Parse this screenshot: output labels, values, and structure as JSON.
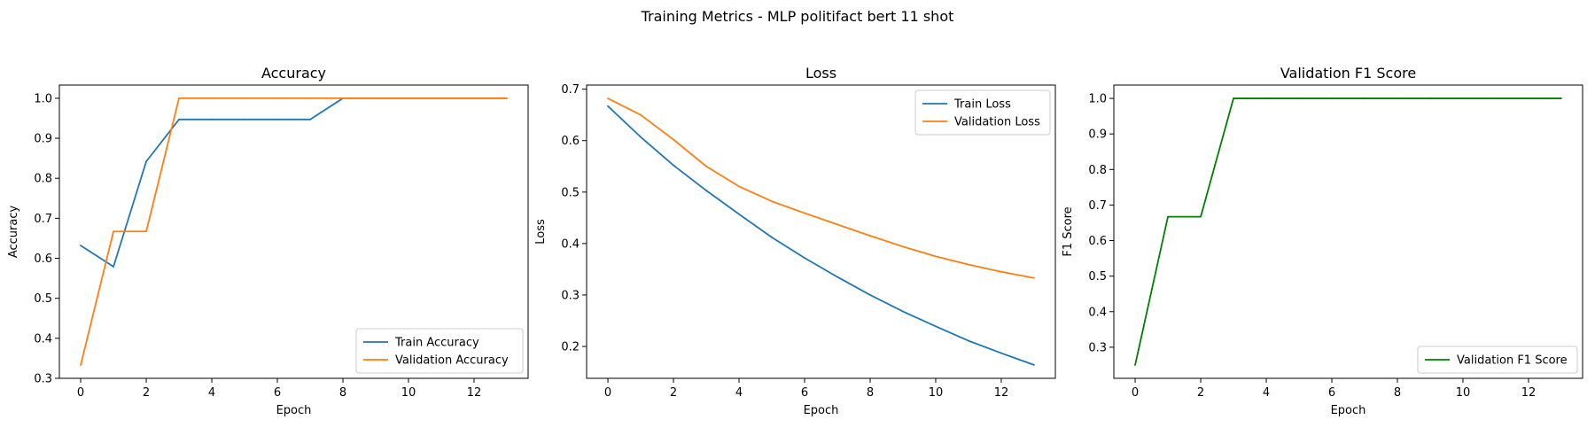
{
  "figure": {
    "suptitle": "Training Metrics - MLP politifact bert 11 shot"
  },
  "chart_data": [
    {
      "type": "line",
      "title": "Accuracy",
      "xlabel": "Epoch",
      "ylabel": "Accuracy",
      "xlim": [
        -0.65,
        13.65
      ],
      "ylim": [
        0.3,
        1.033
      ],
      "xticks": [
        0,
        2,
        4,
        6,
        8,
        10,
        12
      ],
      "yticks": [
        0.3,
        0.4,
        0.5,
        0.6,
        0.7,
        0.8,
        0.9,
        1.0
      ],
      "ytick_labels": [
        "0.3",
        "0.4",
        "0.5",
        "0.6",
        "0.7",
        "0.8",
        "0.9",
        "1.0"
      ],
      "legend_position": "lower-right",
      "x": [
        0,
        1,
        2,
        3,
        4,
        5,
        6,
        7,
        8,
        9,
        10,
        11,
        12,
        13
      ],
      "series": [
        {
          "name": "Train Accuracy",
          "color": "#1f77b4",
          "values": [
            0.632,
            0.579,
            0.842,
            0.947,
            0.947,
            0.947,
            0.947,
            0.947,
            1.0,
            1.0,
            1.0,
            1.0,
            1.0,
            1.0
          ]
        },
        {
          "name": "Validation Accuracy",
          "color": "#ff7f0e",
          "values": [
            0.333,
            0.667,
            0.667,
            1.0,
            1.0,
            1.0,
            1.0,
            1.0,
            1.0,
            1.0,
            1.0,
            1.0,
            1.0,
            1.0
          ]
        }
      ]
    },
    {
      "type": "line",
      "title": "Loss",
      "xlabel": "Epoch",
      "ylabel": "Loss",
      "xlim": [
        -0.65,
        13.65
      ],
      "ylim": [
        0.138,
        0.708
      ],
      "xticks": [
        0,
        2,
        4,
        6,
        8,
        10,
        12
      ],
      "yticks": [
        0.2,
        0.3,
        0.4,
        0.5,
        0.6,
        0.7
      ],
      "ytick_labels": [
        "0.2",
        "0.3",
        "0.4",
        "0.5",
        "0.6",
        "0.7"
      ],
      "legend_position": "upper-right",
      "x": [
        0,
        1,
        2,
        3,
        4,
        5,
        6,
        7,
        8,
        9,
        10,
        11,
        12,
        13
      ],
      "series": [
        {
          "name": "Train Loss",
          "color": "#1f77b4",
          "values": [
            0.667,
            0.607,
            0.552,
            0.503,
            0.457,
            0.412,
            0.372,
            0.335,
            0.3,
            0.268,
            0.239,
            0.211,
            0.187,
            0.164
          ]
        },
        {
          "name": "Validation Loss",
          "color": "#ff7f0e",
          "values": [
            0.682,
            0.65,
            0.602,
            0.55,
            0.511,
            0.482,
            0.459,
            0.437,
            0.415,
            0.394,
            0.375,
            0.359,
            0.345,
            0.333
          ]
        }
      ]
    },
    {
      "type": "line",
      "title": "Validation F1 Score",
      "xlabel": "Epoch",
      "ylabel": "F1 Score",
      "xlim": [
        -0.65,
        13.65
      ],
      "ylim": [
        0.2125,
        1.0375
      ],
      "xticks": [
        0,
        2,
        4,
        6,
        8,
        10,
        12
      ],
      "yticks": [
        0.3,
        0.4,
        0.5,
        0.6,
        0.7,
        0.8,
        0.9,
        1.0
      ],
      "ytick_labels": [
        "0.3",
        "0.4",
        "0.5",
        "0.6",
        "0.7",
        "0.8",
        "0.9",
        "1.0"
      ],
      "legend_position": "lower-right",
      "x": [
        0,
        1,
        2,
        3,
        4,
        5,
        6,
        7,
        8,
        9,
        10,
        11,
        12,
        13
      ],
      "series": [
        {
          "name": "Validation F1 Score",
          "color": "#008000",
          "values": [
            0.25,
            0.667,
            0.667,
            1.0,
            1.0,
            1.0,
            1.0,
            1.0,
            1.0,
            1.0,
            1.0,
            1.0,
            1.0,
            1.0
          ]
        }
      ]
    }
  ]
}
